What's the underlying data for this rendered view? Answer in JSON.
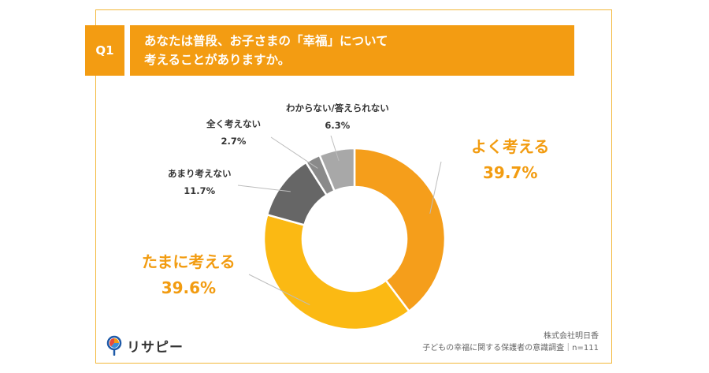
{
  "header": {
    "badge": "Q1",
    "question_line1": "あなたは普段、お子さまの「幸福」について",
    "question_line2": "考えることがありますか。"
  },
  "brand": {
    "name": "リサピー",
    "icon": "magnifier-pie-logo-icon"
  },
  "footer": {
    "company": "株式会社明日香",
    "survey": "子どもの幸福に関する保護者の意識調査｜n=111"
  },
  "colors": {
    "accent": "#f39c12",
    "slice_often": "#f59e1b",
    "slice_sometimes": "#fbb913",
    "slice_rarely": "#666666",
    "slice_never": "#8a8a8a",
    "slice_unknown": "#a8a8a8"
  },
  "chart_data": {
    "type": "pie",
    "donut": true,
    "title": "",
    "categories": [
      "よく考える",
      "たまに考える",
      "あまり考えない",
      "全く考えない",
      "わからない/答えられない"
    ],
    "values": [
      39.7,
      39.6,
      11.7,
      2.7,
      6.3
    ],
    "labels": [
      "39.7%",
      "39.6%",
      "11.7%",
      "2.7%",
      "6.3%"
    ],
    "unit": "%"
  }
}
